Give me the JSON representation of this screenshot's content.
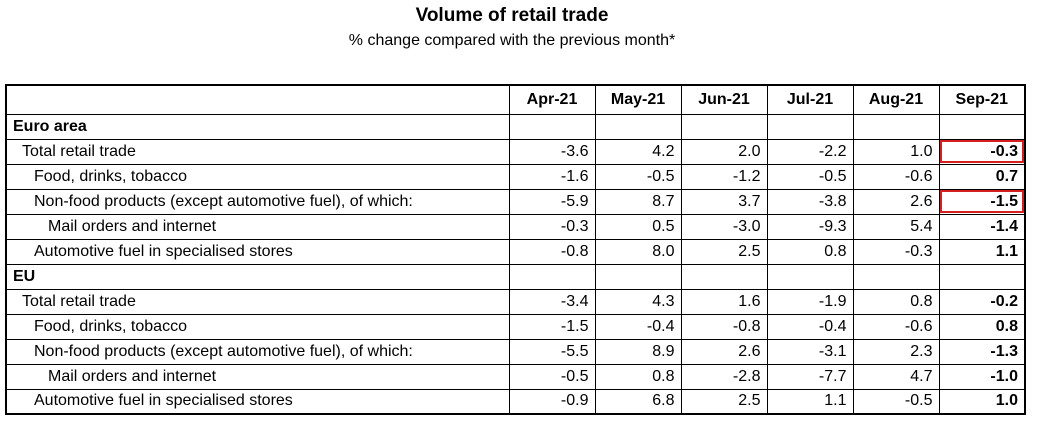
{
  "chart_data": {
    "type": "table",
    "title": "Volume of retail trade",
    "subtitle": "% change compared with the previous month*",
    "columns": [
      "Apr-21",
      "May-21",
      "Jun-21",
      "Jul-21",
      "Aug-21",
      "Sep-21"
    ],
    "highlight_color": "#d42020",
    "sections": [
      {
        "name": "Euro area",
        "rows": [
          {
            "label": "Total retail trade",
            "level": 1,
            "values": [
              "-3.6",
              "4.2",
              "2.0",
              "-2.2",
              "1.0",
              "-0.3"
            ],
            "highlight_last": true
          },
          {
            "label": "Food, drinks, tobacco",
            "level": 2,
            "values": [
              "-1.6",
              "-0.5",
              "-1.2",
              "-0.5",
              "-0.6",
              "0.7"
            ],
            "highlight_last": false
          },
          {
            "label": "Non-food products (except automotive fuel), of which:",
            "level": 2,
            "values": [
              "-5.9",
              "8.7",
              "3.7",
              "-3.8",
              "2.6",
              "-1.5"
            ],
            "highlight_last": true
          },
          {
            "label": "Mail orders and internet",
            "level": 3,
            "values": [
              "-0.3",
              "0.5",
              "-3.0",
              "-9.3",
              "5.4",
              "-1.4"
            ],
            "highlight_last": false
          },
          {
            "label": "Automotive fuel in specialised stores",
            "level": 2,
            "values": [
              "-0.8",
              "8.0",
              "2.5",
              "0.8",
              "-0.3",
              "1.1"
            ],
            "highlight_last": false
          }
        ]
      },
      {
        "name": "EU",
        "rows": [
          {
            "label": "Total retail trade",
            "level": 1,
            "values": [
              "-3.4",
              "4.3",
              "1.6",
              "-1.9",
              "0.8",
              "-0.2"
            ],
            "highlight_last": false
          },
          {
            "label": "Food, drinks, tobacco",
            "level": 2,
            "values": [
              "-1.5",
              "-0.4",
              "-0.8",
              "-0.4",
              "-0.6",
              "0.8"
            ],
            "highlight_last": false
          },
          {
            "label": "Non-food products (except automotive fuel), of which:",
            "level": 2,
            "values": [
              "-5.5",
              "8.9",
              "2.6",
              "-3.1",
              "2.3",
              "-1.3"
            ],
            "highlight_last": false
          },
          {
            "label": "Mail orders and internet",
            "level": 3,
            "values": [
              "-0.5",
              "0.8",
              "-2.8",
              "-7.7",
              "4.7",
              "-1.0"
            ],
            "highlight_last": false
          },
          {
            "label": "Automotive fuel in specialised stores",
            "level": 2,
            "values": [
              "-0.9",
              "6.8",
              "2.5",
              "1.1",
              "-0.5",
              "1.0"
            ],
            "highlight_last": false
          }
        ]
      }
    ]
  }
}
